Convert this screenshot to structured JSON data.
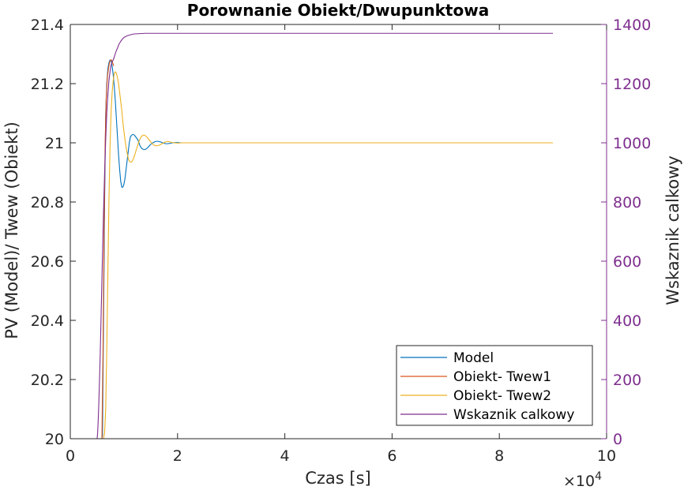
{
  "chart_data": {
    "type": "line",
    "title": "Porownanie Obiekt/Dwupunktowa",
    "xlabel": "Czas [s]",
    "ylabel_left": "PV (Model)/ Twew (Obiekt)",
    "ylabel_right": "Wskaznik calkowy",
    "x_exponent_base": "×10",
    "x_exponent_power": "4",
    "xlim": [
      0,
      100000
    ],
    "ylim_left": [
      20,
      21.4
    ],
    "ylim_right": [
      0,
      1400
    ],
    "x_ticks": [
      0,
      20000,
      40000,
      60000,
      80000,
      100000
    ],
    "x_tick_labels": [
      "0",
      "2",
      "4",
      "6",
      "8",
      "10"
    ],
    "y_left_ticks": [
      20,
      20.2,
      20.4,
      20.6,
      20.8,
      21,
      21.2,
      21.4
    ],
    "y_left_tick_labels": [
      "20",
      "20.2",
      "20.4",
      "20.6",
      "20.8",
      "21",
      "21.2",
      "21.4"
    ],
    "y_right_ticks": [
      0,
      200,
      400,
      600,
      800,
      1000,
      1200,
      1400
    ],
    "y_right_tick_labels": [
      "0",
      "200",
      "400",
      "600",
      "800",
      "1000",
      "1200",
      "1400"
    ],
    "grid": false,
    "legend_position": "bottom-right",
    "right_axis_color": "#7e2f8e",
    "series": [
      {
        "name": "Model",
        "axis": "left",
        "color": "#0072bd",
        "x": [
          0,
          5500,
          5600,
          5700,
          5800,
          5900,
          6000,
          6200,
          6400,
          6600,
          6800,
          7000,
          7200,
          7400,
          7600,
          7800,
          8000,
          8200,
          8400,
          8600,
          8800,
          9000,
          9200,
          9400,
          9600,
          9800,
          10000,
          10200,
          10400,
          10600,
          10800,
          11000,
          11200,
          11400,
          11600,
          11800,
          12000,
          12200,
          12400,
          12600,
          12800,
          13000,
          13200,
          13400,
          13600,
          13800,
          14000,
          14200,
          14400,
          14600,
          14800,
          15000,
          15200,
          15400,
          15600,
          15800,
          16000,
          16200,
          16400,
          16600,
          16800,
          17000,
          17200,
          17400,
          17600,
          17800,
          18000,
          18200,
          18400,
          18600,
          18800,
          19000,
          19200,
          19400,
          19600,
          19800,
          20000,
          20200,
          20400,
          20600,
          20800,
          21000,
          21200,
          21400,
          21600,
          21800,
          22000,
          22200,
          22400,
          22600,
          22800,
          23000
        ],
        "y": [
          20,
          20,
          20,
          20,
          20,
          20,
          20.01,
          20.4,
          20.8,
          21.1,
          21.2,
          21.25,
          21.27,
          21.28,
          21.28,
          21.26,
          21.23,
          21.19,
          21.14,
          21.08,
          21.02,
          20.96,
          20.91,
          20.87,
          20.85,
          20.85,
          20.86,
          20.88,
          20.91,
          20.94,
          20.97,
          21.0,
          21.02,
          21.025,
          21.028,
          21.028,
          21.025,
          21.02,
          21.015,
          21.01,
          21.0,
          20.99,
          20.984,
          20.98,
          20.978,
          20.977,
          20.978,
          20.98,
          20.983,
          20.987,
          20.991,
          20.995,
          20.998,
          21.0,
          21.002,
          21.004,
          21.005,
          21.005,
          21.005,
          21.004,
          21.003,
          21.002,
          21.0,
          20.999,
          20.998,
          20.997,
          20.997,
          20.997,
          20.998,
          20.998,
          20.999,
          21.0,
          21.0,
          21.001,
          21.001,
          21.001,
          21.001,
          21.001,
          21.0,
          21.0,
          21.0,
          21.0,
          21.0,
          21.0,
          21.0,
          21.0,
          21.0,
          21.0,
          21.0,
          21.0,
          21.0,
          21.0
        ]
      },
      {
        "name": "Obiekt- Twew1",
        "axis": "left",
        "color": "#d95319",
        "x": [
          0,
          5000,
          5500,
          5900,
          6100,
          6300,
          6500,
          6700,
          6900,
          7100,
          7300,
          7500,
          7700,
          7900,
          8100
        ],
        "y": [
          20,
          20,
          20,
          20.0,
          20.3,
          20.7,
          21.0,
          21.15,
          21.22,
          21.25,
          21.27,
          21.28,
          21.28,
          21.27,
          21.26
        ]
      },
      {
        "name": "Obiekt- Twew2",
        "axis": "left",
        "color": "#edb120",
        "x": [
          0,
          5500,
          6000,
          6100,
          6200,
          6400,
          6600,
          6800,
          7000,
          7200,
          7400,
          7600,
          7800,
          8000,
          8200,
          8400,
          8600,
          8800,
          9000,
          9200,
          9400,
          9600,
          9800,
          10000,
          10200,
          10400,
          10600,
          10800,
          11000,
          11200,
          11400,
          11600,
          11800,
          12000,
          12200,
          12400,
          12600,
          12800,
          13000,
          13200,
          13400,
          13600,
          13800,
          14000,
          14200,
          14400,
          14600,
          14800,
          15000,
          15200,
          15400,
          15600,
          15800,
          16000,
          16200,
          16400,
          16600,
          16800,
          17000,
          17200,
          17400,
          17600,
          17800,
          18000,
          18200,
          18400,
          18600,
          18800,
          19000,
          19500,
          20000,
          21000,
          22000,
          23000,
          25000,
          30000,
          40000,
          50000,
          60000,
          70000,
          80000,
          90000
        ],
        "y": [
          20,
          20,
          20,
          20,
          20.0,
          20.02,
          20.1,
          20.3,
          20.55,
          20.8,
          20.98,
          21.1,
          21.17,
          21.21,
          21.235,
          21.24,
          21.235,
          21.22,
          21.2,
          21.17,
          21.14,
          21.11,
          21.07,
          21.04,
          21.01,
          20.985,
          20.965,
          20.948,
          20.938,
          20.935,
          20.935,
          20.94,
          20.948,
          20.958,
          20.97,
          20.982,
          20.994,
          21.005,
          21.013,
          21.02,
          21.024,
          21.026,
          21.026,
          21.024,
          21.021,
          21.017,
          21.012,
          21.007,
          21.003,
          20.999,
          20.995,
          20.992,
          20.991,
          20.99,
          20.99,
          20.991,
          20.992,
          20.994,
          20.996,
          20.998,
          21.0,
          21.002,
          21.003,
          21.004,
          21.004,
          21.004,
          21.003,
          21.002,
          21.001,
          21.0,
          20.999,
          21.0,
          21.0,
          21.0,
          21.0,
          21.0,
          21.0,
          21.0,
          21.0,
          21.0,
          21.0,
          21.0
        ]
      },
      {
        "name": "Wskaznik calkowy",
        "axis": "right",
        "color": "#7e2f8e",
        "x": [
          0,
          5000,
          5100,
          5200,
          5300,
          5400,
          5500,
          5600,
          5700,
          5800,
          5900,
          6000,
          6200,
          6400,
          6600,
          6800,
          7000,
          7200,
          7400,
          7600,
          7800,
          8000,
          8200,
          8400,
          8600,
          8800,
          9000,
          9200,
          9400,
          9600,
          9800,
          10000,
          10400,
          10800,
          11200,
          11600,
          12000,
          13000,
          14000,
          15000,
          17000,
          20000,
          30000,
          40000,
          50000,
          60000,
          70000,
          80000,
          90000
        ],
        "y": [
          0,
          0,
          20,
          60,
          110,
          170,
          230,
          300,
          380,
          460,
          540,
          620,
          770,
          900,
          1010,
          1100,
          1160,
          1210,
          1240,
          1262,
          1274,
          1280,
          1290,
          1302,
          1312,
          1320,
          1330,
          1337,
          1343,
          1348,
          1352,
          1356,
          1360,
          1363,
          1365,
          1367,
          1368,
          1369,
          1370,
          1370,
          1370,
          1370,
          1370,
          1370,
          1370,
          1370,
          1370,
          1370,
          1370
        ]
      }
    ]
  }
}
